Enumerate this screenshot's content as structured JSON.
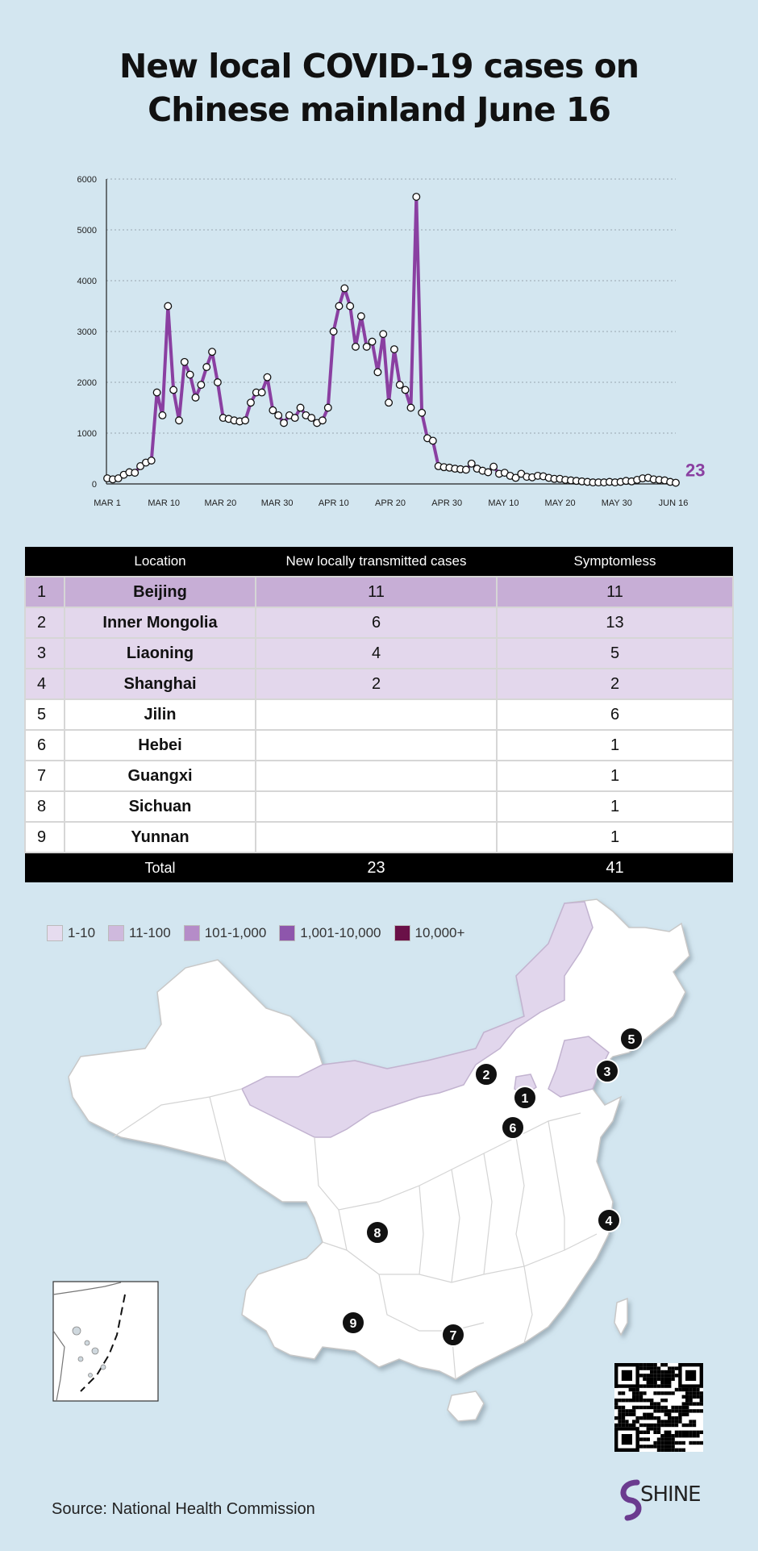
{
  "title": {
    "line1": "New local COVID-19 cases on",
    "line2": "Chinese mainland  June 16"
  },
  "chart_data": {
    "type": "line",
    "color": "#8a3fa1",
    "ylim": [
      0,
      6000
    ],
    "yticks": [
      "0",
      "1000",
      "2000",
      "3000",
      "4000",
      "5000",
      "6000"
    ],
    "xticks": [
      "MAR 1",
      "MAR 10",
      "MAR 20",
      "MAR 30",
      "APR 10",
      "APR 20",
      "APR 30",
      "MAY 10",
      "MAY 20",
      "MAY 30",
      "JUN 16"
    ],
    "end_label": "23",
    "values": [
      110,
      90,
      110,
      180,
      230,
      220,
      350,
      420,
      460,
      1800,
      1350,
      3500,
      1850,
      1250,
      2400,
      2150,
      1700,
      1950,
      2300,
      2600,
      2000,
      1300,
      1280,
      1250,
      1230,
      1250,
      1600,
      1800,
      1800,
      2100,
      1450,
      1350,
      1200,
      1350,
      1300,
      1500,
      1350,
      1300,
      1200,
      1250,
      1500,
      3000,
      3500,
      3850,
      3500,
      2700,
      3300,
      2700,
      2800,
      2200,
      2950,
      1600,
      2650,
      1950,
      1850,
      1500,
      5650,
      1400,
      900,
      850,
      350,
      330,
      320,
      300,
      290,
      280,
      400,
      300,
      260,
      230,
      340,
      200,
      220,
      160,
      120,
      200,
      140,
      130,
      160,
      150,
      120,
      100,
      100,
      80,
      70,
      60,
      50,
      40,
      30,
      30,
      30,
      40,
      30,
      40,
      60,
      50,
      80,
      110,
      120,
      90,
      80,
      70,
      40,
      23
    ]
  },
  "table": {
    "headers": [
      "Location",
      "New locally transmitted cases",
      "Symptomless"
    ],
    "rows": [
      {
        "idx": "1",
        "loc": "Beijing",
        "cases": "11",
        "sym": "11"
      },
      {
        "idx": "2",
        "loc": "Inner Mongolia",
        "cases": "6",
        "sym": "13"
      },
      {
        "idx": "3",
        "loc": "Liaoning",
        "cases": "4",
        "sym": "5"
      },
      {
        "idx": "4",
        "loc": "Shanghai",
        "cases": "2",
        "sym": "2"
      },
      {
        "idx": "5",
        "loc": "Jilin",
        "cases": "",
        "sym": "6"
      },
      {
        "idx": "6",
        "loc": "Hebei",
        "cases": "",
        "sym": "1"
      },
      {
        "idx": "7",
        "loc": "Guangxi",
        "cases": "",
        "sym": "1"
      },
      {
        "idx": "8",
        "loc": "Sichuan",
        "cases": "",
        "sym": "1"
      },
      {
        "idx": "9",
        "loc": "Yunnan",
        "cases": "",
        "sym": "1"
      }
    ],
    "total": {
      "label": "Total",
      "cases": "23",
      "sym": "41"
    }
  },
  "legend": [
    {
      "label": "1-10",
      "color": "#e6dcef"
    },
    {
      "label": "11-100",
      "color": "#cfb9dd"
    },
    {
      "label": "101-1,000",
      "color": "#b58cc8"
    },
    {
      "label": "1,001-10,000",
      "color": "#8e56ac"
    },
    {
      "label": "10,000+",
      "color": "#6a1048"
    }
  ],
  "map_markers": [
    "1",
    "2",
    "3",
    "4",
    "5",
    "6",
    "7",
    "8",
    "9"
  ],
  "source": "Source: National Health Commission",
  "logo": {
    "text": "SHINE"
  }
}
